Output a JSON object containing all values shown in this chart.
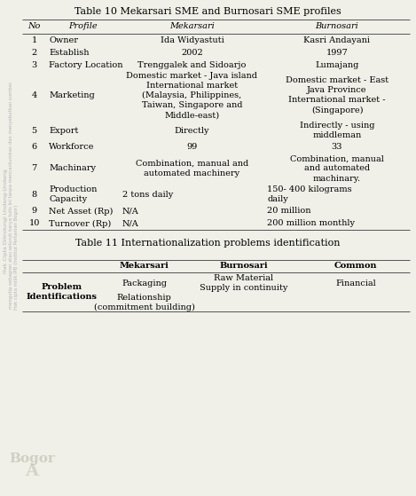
{
  "title": "Table 10 Mekarsari SME and Burnosari SME profiles",
  "title2": "Table 11 Internationalization problems identification",
  "col_headers": [
    "No",
    "Profile",
    "Mekarsari",
    "Burnosari"
  ],
  "rows": [
    {
      "no": "1",
      "profile": "Owner",
      "mekarsari": "Ida Widyastuti",
      "burnosari": "Kasri Andayani"
    },
    {
      "no": "2",
      "profile": "Establish",
      "mekarsari": "2002",
      "burnosari": "1997"
    },
    {
      "no": "3",
      "profile": "Factory Location",
      "mekarsari": "Trenggalek and Sidoarjo",
      "burnosari": "Lumajang"
    },
    {
      "no": "4",
      "profile": "Marketing",
      "mekarsari": "Domestic market - Java island\nInternational market\n(Malaysia, Philippines,\nTaiwan, Singapore and\nMiddle-east)",
      "burnosari": "Domestic market - East\nJava Province\nInternational market -\n(Singapore)"
    },
    {
      "no": "5",
      "profile": "Export",
      "mekarsari": "Directly",
      "burnosari": "Indirectly - using\nmiddleman"
    },
    {
      "no": "6",
      "profile": "Workforce",
      "mekarsari": "99",
      "burnosari": "33"
    },
    {
      "no": "7",
      "profile": "Machinary",
      "mekarsari": "Combination, manual and\nautomated machinery",
      "burnosari": "Combination, manual\nand automated\nmachinary."
    },
    {
      "no": "8",
      "profile": "Production\nCapacity",
      "mekarsari": "2 tons daily",
      "burnosari": "150- 400 kilograms\ndaily"
    },
    {
      "no": "9",
      "profile": "Net Asset (Rp)",
      "mekarsari": "N/A",
      "burnosari": "20 million"
    },
    {
      "no": "10",
      "profile": "Turnover (Rp)",
      "mekarsari": "N/A",
      "burnosari": "200 million monthly"
    }
  ],
  "mek_align": [
    "center",
    "center",
    "center",
    "center",
    "center",
    "center",
    "center",
    "left",
    "left",
    "left"
  ],
  "bur_align": [
    "center",
    "center",
    "center",
    "center",
    "center",
    "center",
    "center",
    "left",
    "left",
    "left"
  ],
  "t2_col_headers": [
    "Mekarsari",
    "Burnosari",
    "Common"
  ],
  "t2_row_header": "Problem\nIdentifications",
  "t2_rows": [
    {
      "mekarsari": "Packaging",
      "burnosari": "Raw Material\nSupply in continuity",
      "common": "Financial"
    },
    {
      "mekarsari": "Relationship\n(commitment building)",
      "burnosari": "",
      "common": ""
    }
  ],
  "bg_color": "#f0efe8",
  "font_size": 7.0,
  "title_font_size": 8.0
}
